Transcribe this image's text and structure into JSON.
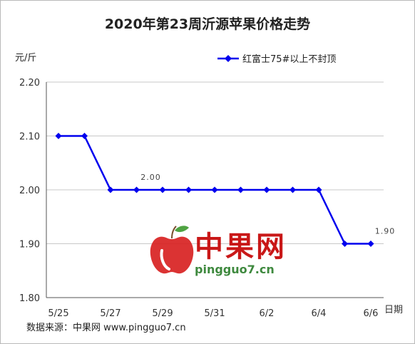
{
  "chart_data": {
    "type": "line",
    "title": "2020年第23周沂源苹果价格走势",
    "ylabel": "元/斤",
    "xlabel": "日期",
    "ylim": [
      1.8,
      2.2
    ],
    "yticks": [
      1.8,
      1.9,
      2.0,
      2.1,
      2.2
    ],
    "x": [
      "5/25",
      "5/26",
      "5/27",
      "5/28",
      "5/29",
      "5/30",
      "5/31",
      "6/1",
      "6/2",
      "6/3",
      "6/4",
      "6/5",
      "6/6"
    ],
    "xtick_labels": [
      "5/25",
      "5/27",
      "5/29",
      "5/31",
      "6/2",
      "6/4",
      "6/6"
    ],
    "series": [
      {
        "name": "红富士75#以上不封顶",
        "color": "#0000ee",
        "values": [
          2.1,
          2.1,
          2.0,
          2.0,
          2.0,
          2.0,
          2.0,
          2.0,
          2.0,
          2.0,
          2.0,
          1.9,
          1.9
        ]
      }
    ],
    "annotations": [
      {
        "x": "5/28",
        "y": 2.0,
        "text": "2.00"
      },
      {
        "x": "6/6",
        "y": 1.9,
        "text": "1.90"
      }
    ],
    "legend": "top-right",
    "grid": "horizontal"
  },
  "source_text": "数据来源：中果网 www.pingguo7.cn",
  "watermark": {
    "name": "中果网",
    "url": "pingguo7.cn",
    "icon": "apple-logo-icon"
  }
}
